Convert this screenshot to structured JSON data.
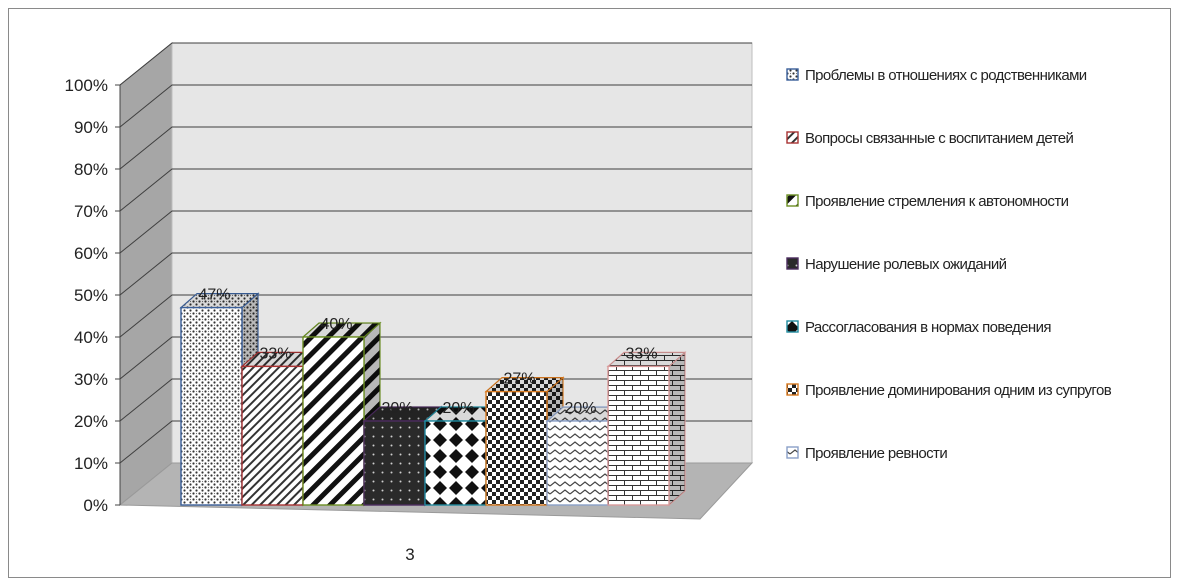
{
  "chart_data": {
    "type": "bar",
    "style": "3d-clustered-column",
    "categories": [
      "3"
    ],
    "series": [
      {
        "name": "Проблемы в отношениях с родственниками",
        "values": [
          0.47
        ],
        "label": "47%",
        "color": "#3a5f99",
        "pattern": "dots"
      },
      {
        "name": "Вопросы связанные с воспитанием детей",
        "values": [
          0.33
        ],
        "label": "33%",
        "color": "#a83232",
        "pattern": "thin-diagonal"
      },
      {
        "name": "Проявление стремления к автономности",
        "values": [
          0.4
        ],
        "label": "40%",
        "color": "#6b8e23",
        "pattern": "wide-diagonal"
      },
      {
        "name": "Нарушение ролевых ожиданий",
        "values": [
          0.2
        ],
        "label": "20%",
        "color": "#4b2c5e",
        "pattern": "dark-dots"
      },
      {
        "name": "Рассогласования в нормах поведения",
        "values": [
          0.2
        ],
        "label": "20%",
        "color": "#1f8a9e",
        "pattern": "diamonds"
      },
      {
        "name": "Проявление доминирования одним из супругов",
        "values": [
          0.27
        ],
        "label": "27%",
        "color": "#d7791f",
        "pattern": "checker"
      },
      {
        "name": "Проявление ревности",
        "values": [
          0.2
        ],
        "label": "20%",
        "color": "#8aa0c8",
        "pattern": "zigzag"
      },
      {
        "name": "",
        "values": [
          0.33
        ],
        "label": "33%",
        "color": "#d99a9a",
        "pattern": "bricks"
      }
    ],
    "y_ticks": [
      "0%",
      "10%",
      "20%",
      "30%",
      "40%",
      "50%",
      "60%",
      "70%",
      "80%",
      "90%",
      "100%"
    ],
    "ylim": [
      0,
      1
    ],
    "grid": true,
    "legend_position": "right"
  }
}
